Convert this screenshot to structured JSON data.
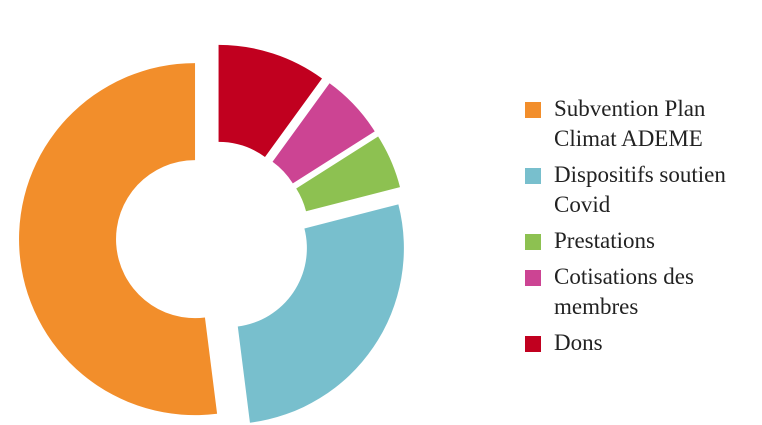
{
  "chart_data": {
    "type": "pie",
    "style": "donut-exploded",
    "categories": [
      "Subvention Plan Climat ADEME",
      "Dispositifs soutien Covid",
      "Prestations",
      "Cotisations des membres",
      "Dons"
    ],
    "values": [
      52,
      27,
      5,
      6,
      10
    ],
    "colors": [
      "#F28E2B",
      "#78BFCD",
      "#8DC151",
      "#CC4493",
      "#C1001F"
    ],
    "legend_position": "right"
  }
}
